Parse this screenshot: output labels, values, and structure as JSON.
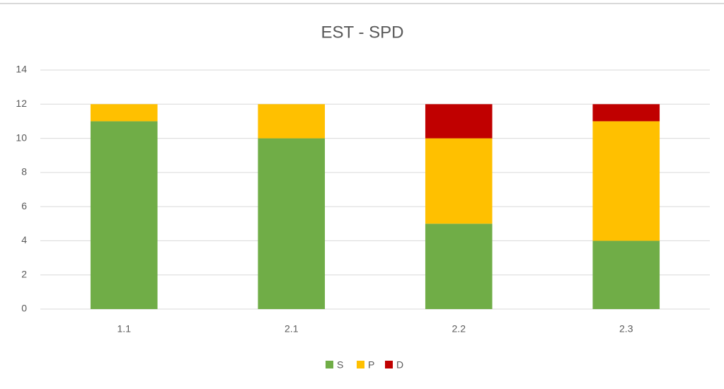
{
  "chart_data": {
    "type": "stacked_bar",
    "title": "EST - SPD",
    "categories": [
      "1.1",
      "2.1",
      "2.2",
      "2.3"
    ],
    "series": [
      {
        "name": "S",
        "color": "#70ad47",
        "values": [
          11,
          10,
          5,
          4
        ]
      },
      {
        "name": "P",
        "color": "#ffc000",
        "values": [
          1,
          2,
          5,
          7
        ]
      },
      {
        "name": "D",
        "color": "#c00000",
        "values": [
          0,
          0,
          2,
          1
        ]
      }
    ],
    "ylim": [
      0,
      14
    ],
    "yticks": [
      0,
      2,
      4,
      6,
      8,
      10,
      12,
      14
    ],
    "grid": true,
    "legend": "bottom"
  }
}
